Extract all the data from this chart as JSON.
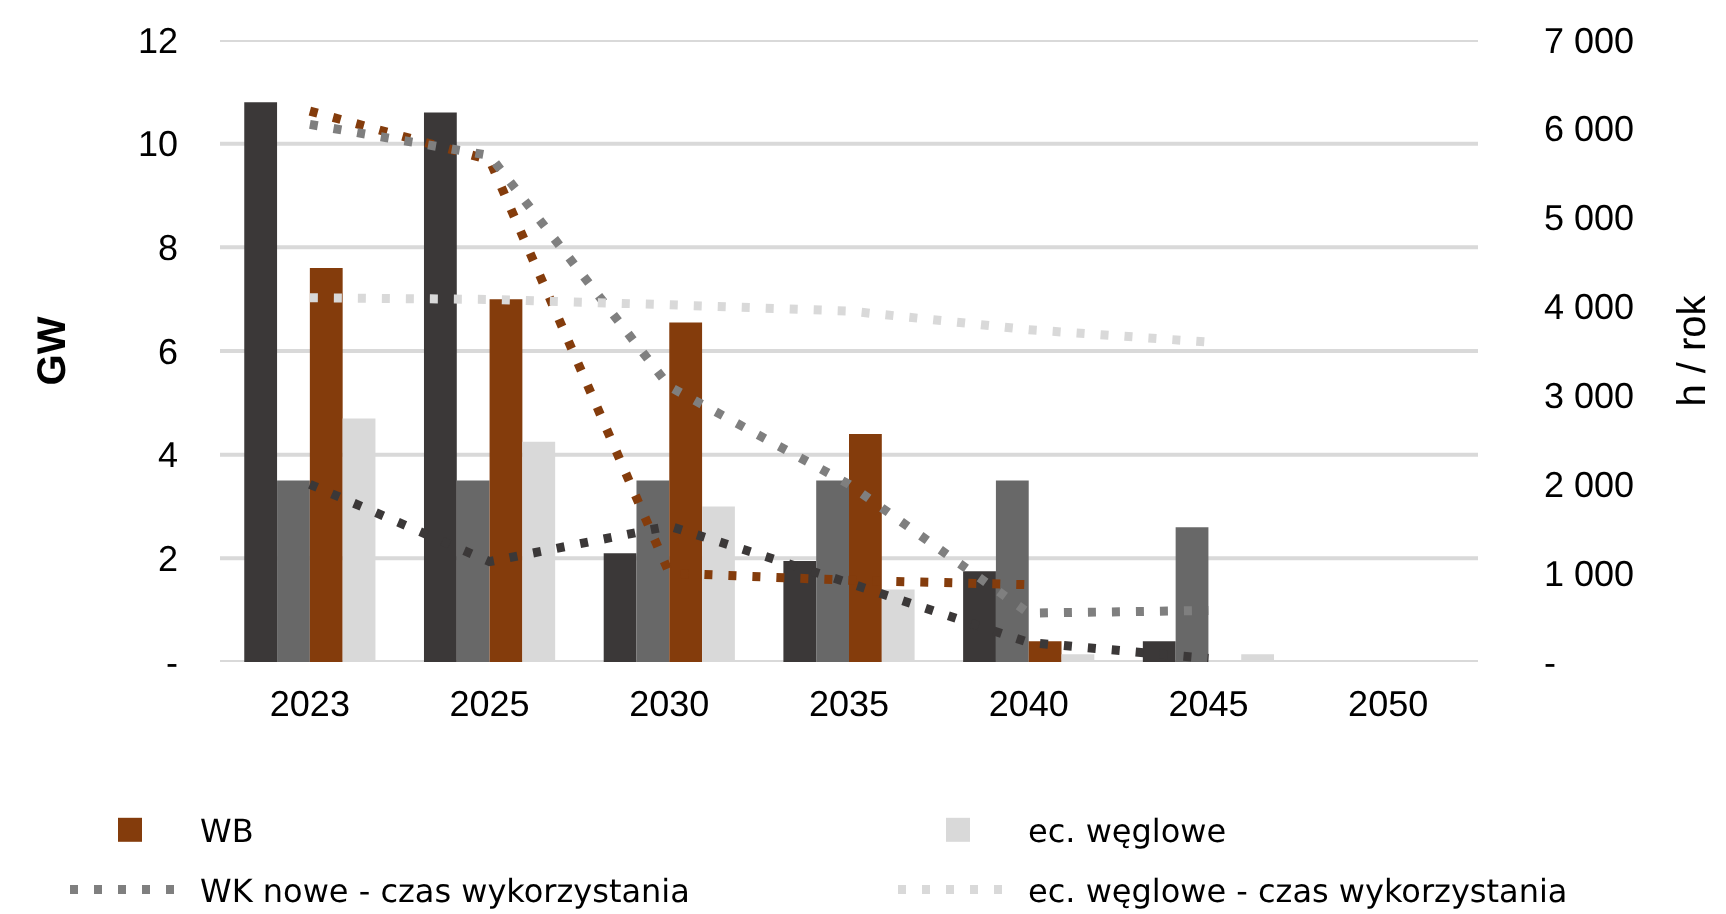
{
  "chart_data": {
    "type": "bar",
    "categories": [
      "2023",
      "2025",
      "2030",
      "2035",
      "2040",
      "2045",
      "2050"
    ],
    "ylabel": "GW",
    "y2label": "h / rok",
    "ylim": [
      0,
      12
    ],
    "yticks": [
      {
        "value": 0,
        "label": "-"
      },
      2,
      4,
      6,
      8,
      10,
      12
    ],
    "y2lim": [
      0,
      7000
    ],
    "y2ticks": [
      {
        "value": 0,
        "label": "-"
      },
      {
        "value": 1000,
        "label": "1 000"
      },
      {
        "value": 2000,
        "label": "2 000"
      },
      {
        "value": 3000,
        "label": "3 000"
      },
      {
        "value": 4000,
        "label": "4 000"
      },
      {
        "value": 5000,
        "label": "5 000"
      },
      {
        "value": 6000,
        "label": "6 000"
      },
      {
        "value": 7000,
        "label": "7 000"
      }
    ],
    "grid": "y",
    "legend": "bottom",
    "line_style": "dotted",
    "marker": "none",
    "series": [
      {
        "color": "#3b3838",
        "values": [
          10.8,
          10.6,
          2.1,
          1.95,
          1.75,
          0.4,
          null
        ]
      },
      {
        "color": "#686868",
        "values": [
          3.5,
          3.5,
          3.5,
          3.5,
          3.5,
          2.6,
          null
        ]
      },
      {
        "name": "WB",
        "color": "#843c0c",
        "values": [
          7.6,
          7.0,
          6.55,
          4.4,
          0.4,
          null,
          null
        ]
      },
      {
        "name": "ec. węglowe",
        "color": "#d9d9d9",
        "values": [
          4.7,
          4.25,
          3.0,
          1.4,
          0.15,
          0.15,
          null
        ]
      },
      {
        "type": "line",
        "axis": "y2",
        "color": "#843c0c",
        "values": [
          6200,
          5650,
          1000,
          920,
          870,
          null,
          null
        ]
      },
      {
        "type": "line",
        "axis": "y2",
        "name": "WK nowe - czas wykorzystania",
        "color": "#7f7f7f",
        "values": [
          6050,
          5700,
          3100,
          2000,
          550,
          580,
          null
        ]
      },
      {
        "type": "line",
        "axis": "y2",
        "name": "ec. węglowe - czas wykorzystania",
        "color": "#d9d9d9",
        "values": [
          4100,
          4080,
          4020,
          3950,
          3740,
          3600,
          null
        ]
      },
      {
        "type": "line",
        "axis": "y2",
        "color": "#3b3838",
        "values": [
          2000,
          1130,
          1530,
          890,
          220,
          40,
          null
        ]
      }
    ]
  }
}
